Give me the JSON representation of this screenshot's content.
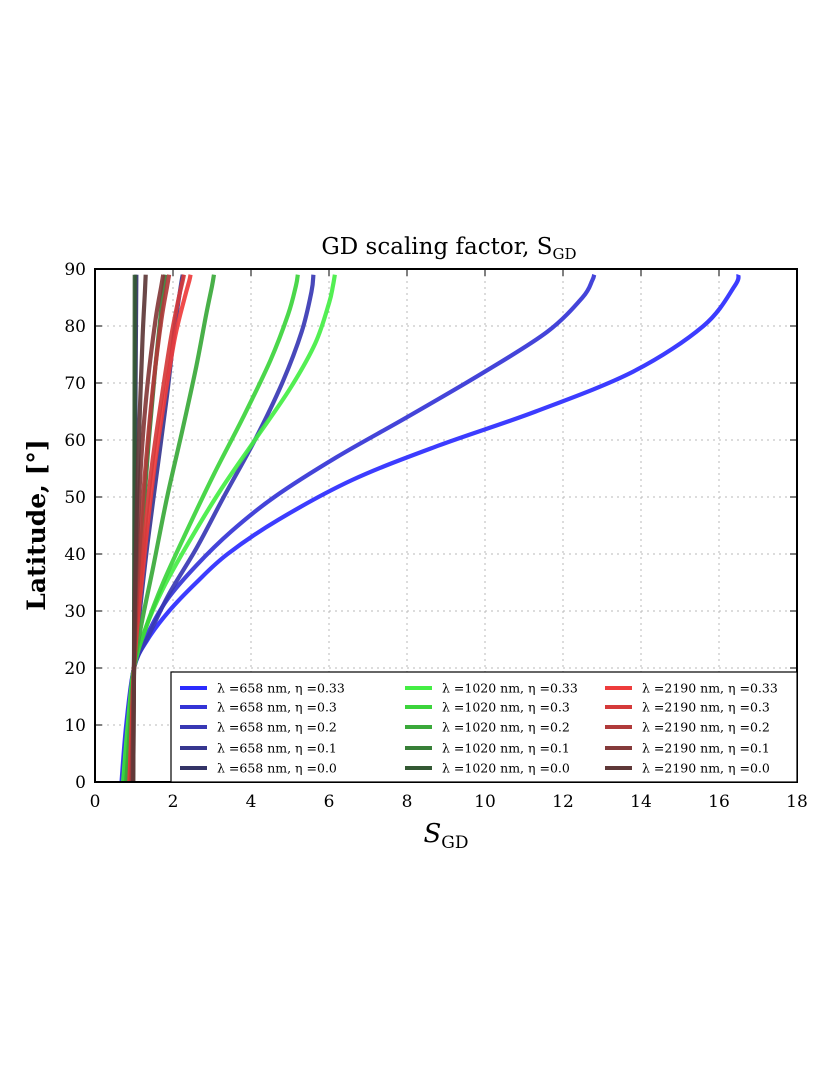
{
  "chart_data": {
    "type": "line",
    "title": "GD scaling factor, S",
    "title_sub": "GD",
    "xlabel": "S",
    "xlabel_sub": "GD",
    "ylabel": "Latitude, [°]",
    "xlim": [
      0,
      18
    ],
    "ylim": [
      0,
      90
    ],
    "xticks": [
      0,
      2,
      4,
      6,
      8,
      10,
      12,
      14,
      16,
      18
    ],
    "yticks": [
      0,
      10,
      20,
      30,
      40,
      50,
      60,
      70,
      80,
      90
    ],
    "x_tick_labels": [
      "0",
      "2",
      "4",
      "6",
      "8",
      "10",
      "12",
      "14",
      "16",
      "18"
    ],
    "y_tick_labels": [
      "0",
      "10",
      "20",
      "30",
      "40",
      "50",
      "60",
      "70",
      "80",
      "90"
    ],
    "grid": true,
    "legend_position": "lower-right",
    "series": [
      {
        "name": "λ =658 nm, η =0.33",
        "color": "#2b2bff",
        "x": [
          0.68,
          0.8,
          1.0,
          1.35,
          1.9,
          2.6,
          3.4,
          4.7,
          6.6,
          8.8,
          11.3,
          13.8,
          15.6,
          16.4,
          16.5
        ],
        "y": [
          0,
          10,
          20,
          25,
          30,
          35,
          40,
          46,
          53,
          59,
          65,
          72,
          80,
          87,
          89
        ]
      },
      {
        "name": "λ =658 nm, η =0.3",
        "color": "#3434d6",
        "x": [
          0.7,
          0.82,
          1.0,
          1.35,
          1.85,
          2.6,
          3.5,
          4.6,
          6.2,
          8.0,
          10.0,
          11.6,
          12.5,
          12.75,
          12.8
        ],
        "y": [
          0,
          10,
          20,
          26,
          32,
          38,
          44,
          50,
          57,
          64,
          72,
          79,
          85,
          88,
          89
        ]
      },
      {
        "name": "λ =658 nm, η =0.2",
        "color": "#3838b4",
        "x": [
          0.75,
          0.85,
          1.0,
          1.4,
          1.9,
          2.6,
          3.3,
          4.1,
          4.8,
          5.3,
          5.55,
          5.6
        ],
        "y": [
          0,
          10,
          20,
          26,
          33,
          41,
          50,
          60,
          70,
          79,
          86,
          89
        ]
      },
      {
        "name": "λ =658 nm, η =0.1",
        "color": "#36368f",
        "x": [
          0.8,
          0.88,
          1.0,
          1.15,
          1.35,
          1.6,
          1.85,
          2.05,
          2.2,
          2.25
        ],
        "y": [
          0,
          10,
          20,
          30,
          42,
          55,
          68,
          80,
          87,
          89
        ]
      },
      {
        "name": "λ =658 nm, η =0.0",
        "color": "#333366",
        "x": [
          0.95,
          0.98,
          1.0,
          1.02,
          1.04,
          1.06
        ],
        "y": [
          0,
          10,
          20,
          40,
          70,
          89
        ]
      },
      {
        "name": "λ =1020 nm, η =0.33",
        "color": "#44ee44",
        "x": [
          0.72,
          0.84,
          1.0,
          1.3,
          1.75,
          2.4,
          3.2,
          4.1,
          5.0,
          5.65,
          6.0,
          6.1,
          6.15
        ],
        "y": [
          0,
          10,
          20,
          27,
          34,
          42,
          51,
          60,
          69,
          77,
          84,
          87,
          89
        ]
      },
      {
        "name": "λ =1020 nm, η =0.3",
        "color": "#3cd43c",
        "x": [
          0.74,
          0.86,
          1.0,
          1.3,
          1.75,
          2.35,
          3.05,
          3.8,
          4.5,
          4.95,
          5.15,
          5.2
        ],
        "y": [
          0,
          10,
          20,
          27,
          35,
          44,
          54,
          64,
          74,
          82,
          87,
          89
        ]
      },
      {
        "name": "λ =1020 nm, η =0.2",
        "color": "#3aa93a",
        "x": [
          0.8,
          0.9,
          1.0,
          1.2,
          1.5,
          1.85,
          2.25,
          2.6,
          2.85,
          3.0,
          3.05
        ],
        "y": [
          0,
          10,
          20,
          28,
          38,
          50,
          62,
          73,
          82,
          87,
          89
        ]
      },
      {
        "name": "λ =1020 nm, η =0.1",
        "color": "#377f37",
        "x": [
          0.88,
          0.94,
          1.0,
          1.1,
          1.22,
          1.38,
          1.55,
          1.7,
          1.78,
          1.8
        ],
        "y": [
          0,
          10,
          20,
          32,
          45,
          60,
          73,
          83,
          88,
          89
        ]
      },
      {
        "name": "λ =1020 nm, η =0.0",
        "color": "#335833",
        "x": [
          0.98,
          0.99,
          1.0,
          1.01,
          1.02
        ],
        "y": [
          0,
          10,
          20,
          50,
          89
        ]
      },
      {
        "name": "λ =2190 nm, η =0.33",
        "color": "#ee3c3c",
        "x": [
          0.88,
          0.94,
          1.0,
          1.12,
          1.3,
          1.52,
          1.78,
          2.05,
          2.3,
          2.42,
          2.45
        ],
        "y": [
          0,
          10,
          20,
          30,
          42,
          55,
          67,
          78,
          85,
          88,
          89
        ]
      },
      {
        "name": "λ =2190 nm, η =0.3",
        "color": "#d53a3a",
        "x": [
          0.9,
          0.95,
          1.0,
          1.1,
          1.25,
          1.45,
          1.7,
          1.95,
          2.15,
          2.25,
          2.28
        ],
        "y": [
          0,
          10,
          20,
          30,
          42,
          55,
          67,
          78,
          85,
          88,
          89
        ]
      },
      {
        "name": "λ =2190 nm, η =0.2",
        "color": "#b03a3a",
        "x": [
          0.93,
          0.97,
          1.0,
          1.07,
          1.18,
          1.33,
          1.5,
          1.7,
          1.85,
          1.9
        ],
        "y": [
          0,
          10,
          20,
          32,
          45,
          58,
          70,
          81,
          87,
          89
        ]
      },
      {
        "name": "λ =2190 nm, η =0.1",
        "color": "#843a3a",
        "x": [
          0.96,
          0.98,
          1.0,
          1.04,
          1.1,
          1.2,
          1.35,
          1.55,
          1.7,
          1.75
        ],
        "y": [
          0,
          10,
          20,
          32,
          45,
          58,
          70,
          81,
          87,
          89
        ]
      },
      {
        "name": "λ =2190 nm, η =0.0",
        "color": "#5e3838",
        "x": [
          0.98,
          0.99,
          1.0,
          1.03,
          1.08,
          1.15,
          1.22,
          1.28,
          1.3
        ],
        "y": [
          0,
          10,
          20,
          35,
          50,
          65,
          78,
          86,
          89
        ]
      }
    ]
  }
}
